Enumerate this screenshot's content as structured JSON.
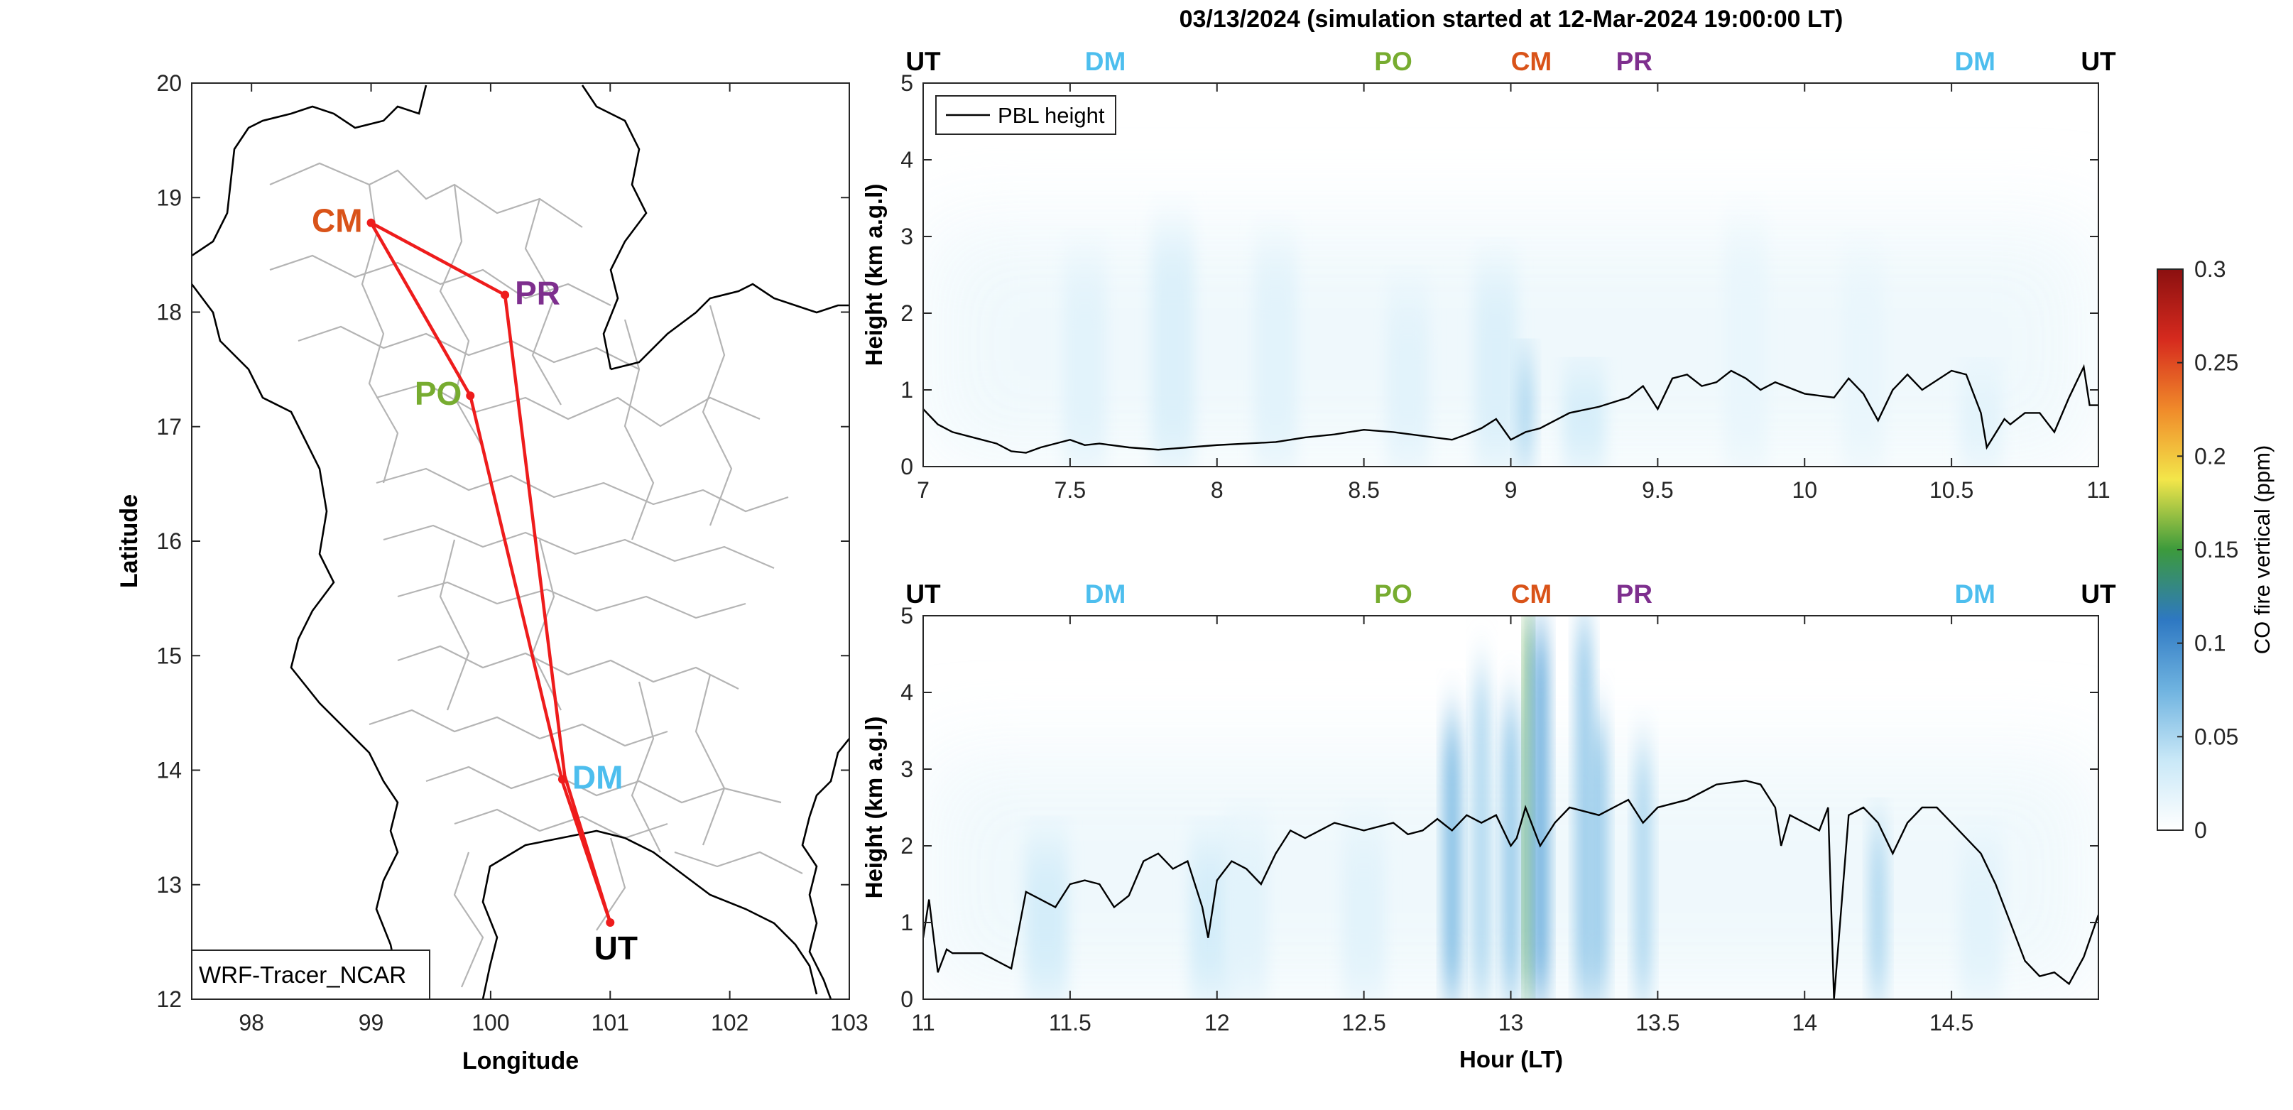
{
  "figure_title": "03/13/2024 (simulation started at 12-Mar-2024 19:00:00 LT)",
  "map": {
    "xlabel": "Longitude",
    "ylabel": "Latitude",
    "xlim": [
      97.5,
      103
    ],
    "ylim": [
      12,
      20
    ],
    "xticks": [
      "98",
      "99",
      "100",
      "101",
      "102",
      "103"
    ],
    "yticks": [
      "12",
      "13",
      "14",
      "15",
      "16",
      "17",
      "18",
      "19",
      "20"
    ],
    "label_box": "WRF-Tracer_NCAR",
    "route_color": "#ee1c1c",
    "route": [
      [
        101.0,
        12.67
      ],
      [
        100.62,
        13.95
      ],
      [
        100.12,
        18.15
      ],
      [
        99.0,
        18.78
      ],
      [
        99.83,
        17.27
      ],
      [
        100.6,
        13.9
      ],
      [
        101.0,
        12.67
      ]
    ],
    "sites": [
      {
        "code": "CM",
        "lon": 99.0,
        "lat": 18.78,
        "color": "#d95319",
        "label_side": "left"
      },
      {
        "code": "PR",
        "lon": 100.12,
        "lat": 18.15,
        "color": "#7e2f8e",
        "label_side": "right"
      },
      {
        "code": "PO",
        "lon": 99.83,
        "lat": 17.27,
        "color": "#77ac30",
        "label_side": "left"
      },
      {
        "code": "DM",
        "lon": 100.6,
        "lat": 13.92,
        "color": "#4dbeee",
        "label_side": "right"
      },
      {
        "code": "UT",
        "lon": 101.0,
        "lat": 12.67,
        "color": "#000000",
        "label_side": "below"
      }
    ]
  },
  "chart_data": [
    {
      "type": "heatmap",
      "xlim": [
        7,
        11
      ],
      "ylim": [
        0,
        5
      ],
      "ylabel": "Height (km a.g.l)",
      "xticks": [
        "7",
        "7.5",
        "8",
        "8.5",
        "9",
        "9.5",
        "10",
        "10.5",
        "11"
      ],
      "yticks": [
        "0",
        "1",
        "2",
        "3",
        "4",
        "5"
      ],
      "legend": "PBL height",
      "site_markers": [
        {
          "code": "UT",
          "x": 7.0,
          "color": "#000000"
        },
        {
          "code": "DM",
          "x": 7.62,
          "color": "#4dbeee"
        },
        {
          "code": "PO",
          "x": 8.6,
          "color": "#77ac30"
        },
        {
          "code": "CM",
          "x": 9.07,
          "color": "#d95319"
        },
        {
          "code": "PR",
          "x": 9.42,
          "color": "#7e2f8e"
        },
        {
          "code": "DM",
          "x": 10.58,
          "color": "#4dbeee"
        },
        {
          "code": "UT",
          "x": 11.0,
          "color": "#000000"
        }
      ],
      "pbl_height": {
        "x": [
          7.0,
          7.05,
          7.1,
          7.15,
          7.2,
          7.25,
          7.3,
          7.35,
          7.4,
          7.45,
          7.5,
          7.55,
          7.6,
          7.7,
          7.8,
          7.9,
          8.0,
          8.1,
          8.2,
          8.3,
          8.4,
          8.5,
          8.6,
          8.7,
          8.8,
          8.85,
          8.9,
          8.95,
          9.0,
          9.05,
          9.1,
          9.15,
          9.2,
          9.3,
          9.4,
          9.45,
          9.5,
          9.55,
          9.6,
          9.65,
          9.7,
          9.75,
          9.8,
          9.85,
          9.9,
          10.0,
          10.1,
          10.15,
          10.2,
          10.25,
          10.3,
          10.35,
          10.4,
          10.5,
          10.55,
          10.6,
          10.62,
          10.68,
          10.7,
          10.75,
          10.8,
          10.85,
          10.9,
          10.95,
          10.97,
          11.0
        ],
        "y": [
          0.75,
          0.55,
          0.45,
          0.4,
          0.35,
          0.3,
          0.2,
          0.18,
          0.25,
          0.3,
          0.35,
          0.28,
          0.3,
          0.25,
          0.22,
          0.25,
          0.28,
          0.3,
          0.32,
          0.38,
          0.42,
          0.48,
          0.45,
          0.4,
          0.35,
          0.42,
          0.5,
          0.62,
          0.35,
          0.45,
          0.5,
          0.6,
          0.7,
          0.78,
          0.9,
          1.05,
          0.75,
          1.15,
          1.2,
          1.05,
          1.1,
          1.25,
          1.15,
          1.0,
          1.1,
          0.95,
          0.9,
          1.15,
          0.95,
          0.6,
          1.0,
          1.2,
          1.0,
          1.25,
          1.2,
          0.7,
          0.25,
          0.62,
          0.55,
          0.7,
          0.7,
          0.45,
          0.9,
          1.3,
          0.8,
          0.8
        ]
      },
      "co_plumes": [
        {
          "x": 7.55,
          "ymax": 2.6,
          "v": 0.02
        },
        {
          "x": 7.85,
          "ymax": 3.0,
          "v": 0.025
        },
        {
          "x": 8.2,
          "ymax": 2.8,
          "v": 0.02
        },
        {
          "x": 8.65,
          "ymax": 2.2,
          "v": 0.02
        },
        {
          "x": 8.95,
          "ymax": 2.5,
          "v": 0.025
        },
        {
          "x": 9.05,
          "ymax": 1.4,
          "v": 0.05
        },
        {
          "x": 9.25,
          "ymax": 1.2,
          "v": 0.03
        },
        {
          "x": 9.8,
          "ymax": 3.0,
          "v": 0.015
        },
        {
          "x": 10.2,
          "ymax": 2.6,
          "v": 0.015
        },
        {
          "x": 10.6,
          "ymax": 1.2,
          "v": 0.02
        }
      ]
    },
    {
      "type": "heatmap",
      "xlim": [
        11,
        15
      ],
      "ylim": [
        0,
        5
      ],
      "xlabel": "Hour (LT)",
      "ylabel": "Height (km a.g.l)",
      "xticks": [
        "11",
        "11.5",
        "12",
        "12.5",
        "13",
        "13.5",
        "14",
        "14.5"
      ],
      "yticks": [
        "0",
        "1",
        "2",
        "3",
        "4",
        "5"
      ],
      "site_markers": [
        {
          "code": "UT",
          "x": 11.0,
          "color": "#000000"
        },
        {
          "code": "DM",
          "x": 11.62,
          "color": "#4dbeee"
        },
        {
          "code": "PO",
          "x": 12.6,
          "color": "#77ac30"
        },
        {
          "code": "CM",
          "x": 13.07,
          "color": "#d95319"
        },
        {
          "code": "PR",
          "x": 13.42,
          "color": "#7e2f8e"
        },
        {
          "code": "DM",
          "x": 14.58,
          "color": "#4dbeee"
        },
        {
          "code": "UT",
          "x": 15.0,
          "color": "#000000"
        }
      ],
      "pbl_height": {
        "x": [
          11.0,
          11.02,
          11.05,
          11.08,
          11.1,
          11.2,
          11.3,
          11.35,
          11.4,
          11.45,
          11.5,
          11.55,
          11.6,
          11.65,
          11.7,
          11.75,
          11.8,
          11.85,
          11.9,
          11.95,
          11.97,
          12.0,
          12.05,
          12.1,
          12.15,
          12.2,
          12.25,
          12.3,
          12.35,
          12.4,
          12.5,
          12.6,
          12.65,
          12.7,
          12.75,
          12.8,
          12.85,
          12.9,
          12.95,
          13.0,
          13.02,
          13.05,
          13.1,
          13.15,
          13.2,
          13.3,
          13.4,
          13.45,
          13.5,
          13.6,
          13.7,
          13.8,
          13.85,
          13.9,
          13.92,
          13.95,
          14.0,
          14.05,
          14.08,
          14.1,
          14.15,
          14.2,
          14.25,
          14.3,
          14.35,
          14.4,
          14.45,
          14.5,
          14.6,
          14.65,
          14.7,
          14.75,
          14.8,
          14.85,
          14.9,
          14.95,
          15.0
        ],
        "y": [
          0.8,
          1.3,
          0.35,
          0.65,
          0.6,
          0.6,
          0.4,
          1.4,
          1.3,
          1.2,
          1.5,
          1.55,
          1.5,
          1.2,
          1.35,
          1.8,
          1.9,
          1.7,
          1.8,
          1.2,
          0.8,
          1.55,
          1.8,
          1.7,
          1.5,
          1.9,
          2.2,
          2.1,
          2.2,
          2.3,
          2.2,
          2.3,
          2.15,
          2.2,
          2.35,
          2.2,
          2.4,
          2.3,
          2.4,
          2.0,
          2.1,
          2.5,
          2.0,
          2.3,
          2.5,
          2.4,
          2.6,
          2.3,
          2.5,
          2.6,
          2.8,
          2.85,
          2.8,
          2.5,
          2.0,
          2.4,
          2.3,
          2.2,
          2.5,
          0.0,
          2.4,
          2.5,
          2.3,
          1.9,
          2.3,
          2.5,
          2.5,
          2.3,
          1.9,
          1.5,
          1.0,
          0.5,
          0.3,
          0.35,
          0.2,
          0.55,
          1.1
        ]
      },
      "co_plumes": [
        {
          "x": 11.42,
          "ymax": 2.0,
          "v": 0.03
        },
        {
          "x": 11.98,
          "ymax": 2.0,
          "v": 0.03
        },
        {
          "x": 12.1,
          "ymax": 2.2,
          "v": 0.02
        },
        {
          "x": 12.5,
          "ymax": 2.2,
          "v": 0.02
        },
        {
          "x": 12.8,
          "ymax": 3.6,
          "v": 0.07
        },
        {
          "x": 12.9,
          "ymax": 4.2,
          "v": 0.05
        },
        {
          "x": 13.0,
          "ymax": 3.8,
          "v": 0.06
        },
        {
          "x": 13.06,
          "ymax": 5.0,
          "v": 0.15
        },
        {
          "x": 13.1,
          "ymax": 4.8,
          "v": 0.08
        },
        {
          "x": 13.25,
          "ymax": 4.9,
          "v": 0.06
        },
        {
          "x": 13.3,
          "ymax": 3.6,
          "v": 0.06
        },
        {
          "x": 13.45,
          "ymax": 3.2,
          "v": 0.05
        },
        {
          "x": 14.25,
          "ymax": 2.2,
          "v": 0.05
        },
        {
          "x": 14.6,
          "ymax": 2.0,
          "v": 0.02
        }
      ]
    }
  ],
  "colorbar": {
    "label": "CO fire vertical (ppm)",
    "ticks": [
      "0",
      "0.05",
      "0.1",
      "0.15",
      "0.2",
      "0.25",
      "0.3"
    ],
    "range": [
      0,
      0.3
    ],
    "stops": [
      "#ffffff",
      "#c9e8f7",
      "#6fb3e0",
      "#2e78c2",
      "#3c9a3c",
      "#f3e64a",
      "#f08a2a",
      "#d62a1e",
      "#8b1010"
    ]
  }
}
